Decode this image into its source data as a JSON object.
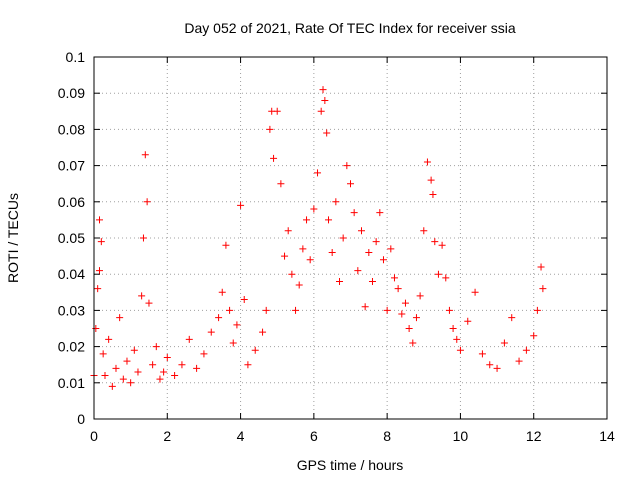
{
  "chart_data": {
    "type": "scatter",
    "title": "Day 052 of 2021, Rate Of TEC Index for receiver ssia",
    "xlabel": "GPS time / hours",
    "ylabel": "ROTI / TECUs",
    "xlim": [
      0,
      14
    ],
    "ylim": [
      0,
      0.1
    ],
    "x_ticks": [
      "0",
      "2",
      "4",
      "6",
      "8",
      "10",
      "12",
      "14"
    ],
    "y_ticks": [
      "0",
      "0.01",
      "0.02",
      "0.03",
      "0.04",
      "0.05",
      "0.06",
      "0.07",
      "0.08",
      "0.09",
      "0.1"
    ],
    "grid": true,
    "marker": "plus",
    "color": "#ff0000",
    "series": [
      {
        "x": [
          0.0,
          0.05,
          0.1,
          0.15,
          0.15,
          0.2,
          0.25,
          0.3,
          0.4,
          0.5,
          0.6,
          0.7,
          0.8,
          0.9,
          1.0,
          1.1,
          1.2,
          1.3,
          1.35,
          1.4,
          1.45,
          1.5,
          1.6,
          1.7,
          1.8,
          1.9,
          2.0,
          2.2,
          2.4,
          2.6,
          2.8,
          3.0,
          3.2,
          3.4,
          3.5,
          3.6,
          3.7,
          3.8,
          3.9,
          4.0,
          4.1,
          4.2,
          4.4,
          4.6,
          4.7,
          4.8,
          4.85,
          4.9,
          5.0,
          5.1,
          5.2,
          5.3,
          5.4,
          5.5,
          5.6,
          5.7,
          5.8,
          5.9,
          6.0,
          6.1,
          6.2,
          6.25,
          6.3,
          6.35,
          6.4,
          6.5,
          6.6,
          6.7,
          6.8,
          6.9,
          7.0,
          7.1,
          7.2,
          7.3,
          7.4,
          7.5,
          7.6,
          7.7,
          7.8,
          7.9,
          8.0,
          8.1,
          8.2,
          8.3,
          8.4,
          8.5,
          8.6,
          8.7,
          8.8,
          8.9,
          9.0,
          9.1,
          9.2,
          9.25,
          9.3,
          9.4,
          9.5,
          9.6,
          9.7,
          9.8,
          9.9,
          10.0,
          10.2,
          10.4,
          10.6,
          10.8,
          11.0,
          11.2,
          11.4,
          11.6,
          11.8,
          12.0,
          12.1,
          12.2,
          12.25
        ],
        "y": [
          0.012,
          0.025,
          0.036,
          0.041,
          0.055,
          0.049,
          0.018,
          0.012,
          0.022,
          0.009,
          0.014,
          0.028,
          0.011,
          0.016,
          0.01,
          0.019,
          0.013,
          0.034,
          0.05,
          0.073,
          0.06,
          0.032,
          0.015,
          0.02,
          0.011,
          0.013,
          0.017,
          0.012,
          0.015,
          0.022,
          0.014,
          0.018,
          0.024,
          0.028,
          0.035,
          0.048,
          0.03,
          0.021,
          0.026,
          0.059,
          0.033,
          0.015,
          0.019,
          0.024,
          0.03,
          0.08,
          0.085,
          0.072,
          0.085,
          0.065,
          0.045,
          0.052,
          0.04,
          0.03,
          0.037,
          0.047,
          0.055,
          0.044,
          0.058,
          0.068,
          0.085,
          0.091,
          0.088,
          0.079,
          0.055,
          0.046,
          0.06,
          0.038,
          0.05,
          0.07,
          0.065,
          0.057,
          0.041,
          0.052,
          0.031,
          0.046,
          0.038,
          0.049,
          0.057,
          0.044,
          0.03,
          0.047,
          0.039,
          0.036,
          0.029,
          0.032,
          0.025,
          0.021,
          0.028,
          0.034,
          0.052,
          0.071,
          0.066,
          0.062,
          0.049,
          0.04,
          0.048,
          0.039,
          0.03,
          0.025,
          0.022,
          0.019,
          0.027,
          0.035,
          0.018,
          0.015,
          0.014,
          0.021,
          0.028,
          0.016,
          0.019,
          0.023,
          0.03,
          0.042,
          0.036
        ]
      }
    ]
  }
}
